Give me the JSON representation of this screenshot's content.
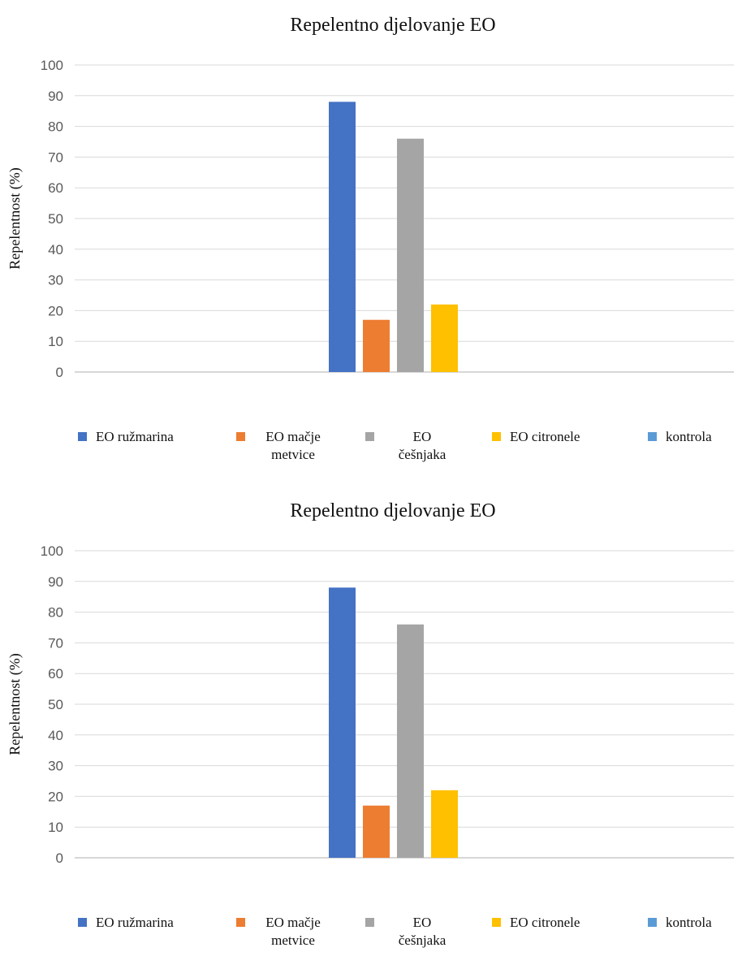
{
  "chart_data": [
    {
      "type": "bar",
      "title": "Repelentno djelovanje EO",
      "xlabel": "",
      "ylabel": "Repelentnost (%)",
      "ylim": [
        0,
        100
      ],
      "yticks": [
        0,
        10,
        20,
        30,
        40,
        50,
        60,
        70,
        80,
        90,
        100
      ],
      "grid": true,
      "legend_position": "bottom",
      "series": [
        {
          "name": "EO ružmarina",
          "value": 88,
          "color": "#4472c4",
          "legend_lines": [
            "EO ružmarina"
          ]
        },
        {
          "name": "EO mačje metvice",
          "value": 17,
          "color": "#ed7d31",
          "legend_lines": [
            "EO mačje",
            "metvice"
          ]
        },
        {
          "name": "EO češnjaka",
          "value": 76,
          "color": "#a5a5a5",
          "legend_lines": [
            "EO",
            "češnjaka"
          ]
        },
        {
          "name": "EO citronele",
          "value": 22,
          "color": "#ffc000",
          "legend_lines": [
            "EO citronele"
          ]
        },
        {
          "name": "kontrola",
          "value": 0,
          "color": "#5b9bd5",
          "legend_lines": [
            "kontrola"
          ]
        }
      ]
    },
    {
      "type": "bar",
      "title": "Repelentno djelovanje EO",
      "xlabel": "",
      "ylabel": "Repelentnost (%)",
      "ylim": [
        0,
        100
      ],
      "yticks": [
        0,
        10,
        20,
        30,
        40,
        50,
        60,
        70,
        80,
        90,
        100
      ],
      "grid": true,
      "legend_position": "bottom",
      "series": [
        {
          "name": "EO ružmarina",
          "value": 88,
          "color": "#4472c4",
          "legend_lines": [
            "EO ružmarina"
          ]
        },
        {
          "name": "EO mačje metvice",
          "value": 17,
          "color": "#ed7d31",
          "legend_lines": [
            "EO mačje",
            "metvice"
          ]
        },
        {
          "name": "EO češnjaka",
          "value": 76,
          "color": "#a5a5a5",
          "legend_lines": [
            "EO",
            "češnjaka"
          ]
        },
        {
          "name": "EO citronele",
          "value": 22,
          "color": "#ffc000",
          "legend_lines": [
            "EO citronele"
          ]
        },
        {
          "name": "kontrola",
          "value": 0,
          "color": "#5b9bd5",
          "legend_lines": [
            "kontrola"
          ]
        }
      ]
    }
  ]
}
